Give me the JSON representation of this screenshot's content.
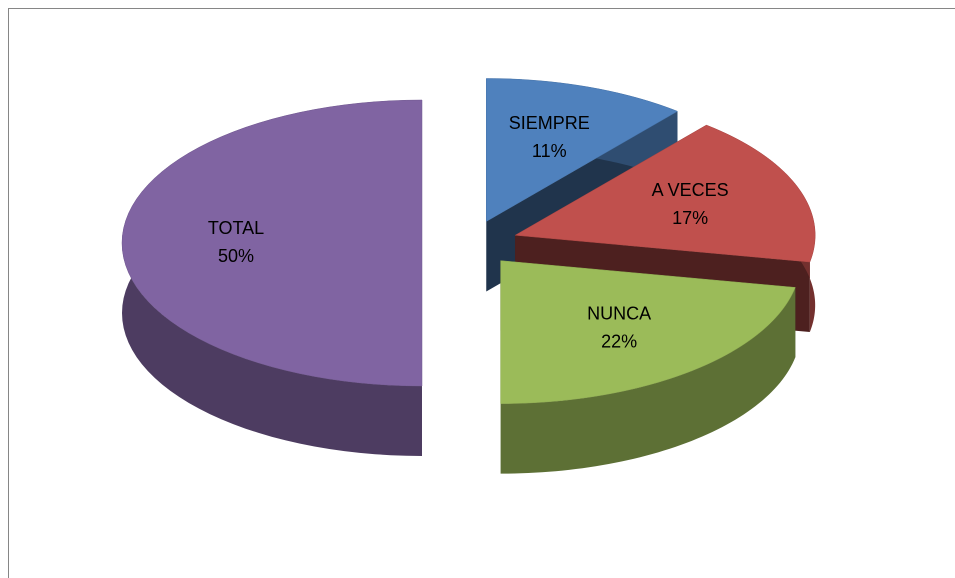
{
  "chart_data": {
    "type": "pie",
    "categories": [
      "SIEMPRE",
      "A VECES",
      "NUNCA",
      "TOTAL"
    ],
    "values": [
      11,
      17,
      22,
      50
    ],
    "value_labels": [
      "11%",
      "17%",
      "22%",
      "50%"
    ],
    "colors": [
      "#4f81bd",
      "#c0504d",
      "#9bbb59",
      "#8064a2"
    ]
  }
}
